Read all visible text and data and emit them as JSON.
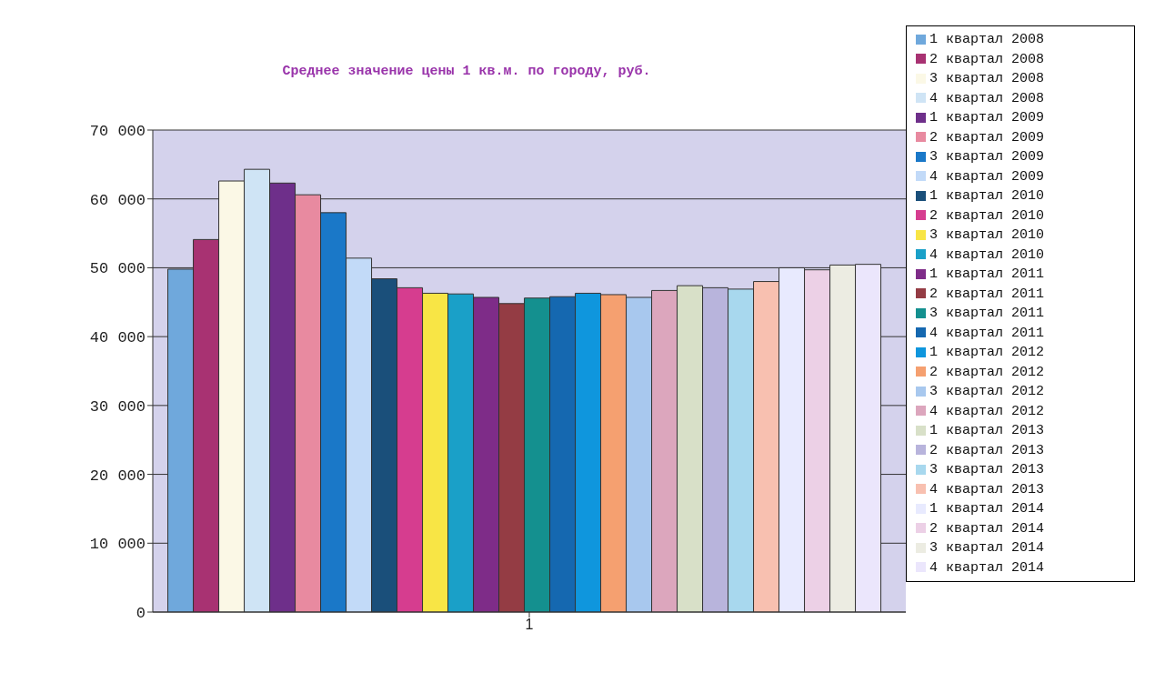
{
  "chart_data": {
    "type": "bar",
    "title": "Среднее значение цены 1 кв.м. по городу, руб.",
    "categories": [
      "1"
    ],
    "series": [
      {
        "name": "1 квартал 2008",
        "color": "#6fa8dc",
        "values": [
          49800
        ]
      },
      {
        "name": "2 квартал 2008",
        "color": "#a83272",
        "values": [
          54100
        ]
      },
      {
        "name": "3 квартал 2008",
        "color": "#fbf8e6",
        "values": [
          62600
        ]
      },
      {
        "name": "4 квартал 2008",
        "color": "#cfe4f5",
        "values": [
          64300
        ]
      },
      {
        "name": "1 квартал 2009",
        "color": "#6e2f8a",
        "values": [
          62300
        ]
      },
      {
        "name": "2 квартал 2009",
        "color": "#e88aa0",
        "values": [
          60600
        ]
      },
      {
        "name": "3 квартал 2009",
        "color": "#1a78c8",
        "values": [
          58000
        ]
      },
      {
        "name": "4 квартал 2009",
        "color": "#c2daf8",
        "values": [
          51400
        ]
      },
      {
        "name": "1 квартал 2010",
        "color": "#1a4f7a",
        "values": [
          48400
        ]
      },
      {
        "name": "2 квартал 2010",
        "color": "#d63d8f",
        "values": [
          47100
        ]
      },
      {
        "name": "3 квартал 2010",
        "color": "#f8e545",
        "values": [
          46300
        ]
      },
      {
        "name": "4 квартал 2010",
        "color": "#1aa0c8",
        "values": [
          46200
        ]
      },
      {
        "name": "1 квартал 2011",
        "color": "#7e2c88",
        "values": [
          45700
        ]
      },
      {
        "name": "2 квартал 2011",
        "color": "#943c44",
        "values": [
          44800
        ]
      },
      {
        "name": "3 квартал 2011",
        "color": "#14908f",
        "values": [
          45600
        ]
      },
      {
        "name": "4 квартал 2011",
        "color": "#1568b0",
        "values": [
          45800
        ]
      },
      {
        "name": "1 квартал 2012",
        "color": "#0f96dd",
        "values": [
          46300
        ]
      },
      {
        "name": "2 квартал 2012",
        "color": "#f5a070",
        "values": [
          46100
        ]
      },
      {
        "name": "3 квартал 2012",
        "color": "#a8c8ee",
        "values": [
          45700
        ]
      },
      {
        "name": "4 квартал 2012",
        "color": "#dca6bd",
        "values": [
          46700
        ]
      },
      {
        "name": "1 квартал 2013",
        "color": "#d8e0c8",
        "values": [
          47400
        ]
      },
      {
        "name": "2 квартал 2013",
        "color": "#b8b4dc",
        "values": [
          47100
        ]
      },
      {
        "name": "3 квартал 2013",
        "color": "#a8d8ee",
        "values": [
          46900
        ]
      },
      {
        "name": "4 квартал 2013",
        "color": "#f8c0b0",
        "values": [
          48000
        ]
      },
      {
        "name": "1 квартал 2014",
        "color": "#e8eafe",
        "values": [
          50000
        ]
      },
      {
        "name": "2 квартал 2014",
        "color": "#ecd0e6",
        "values": [
          49700
        ]
      },
      {
        "name": "3 квартал 2014",
        "color": "#ecece2",
        "values": [
          50400
        ]
      },
      {
        "name": "4 квартал 2014",
        "color": "#ebe6fc",
        "values": [
          50500
        ]
      }
    ],
    "ylim": [
      0,
      70000
    ],
    "yticks": [
      {
        "value": 0,
        "label": "0"
      },
      {
        "value": 10000,
        "label": "10 000"
      },
      {
        "value": 20000,
        "label": "20 000"
      },
      {
        "value": 30000,
        "label": "30 000"
      },
      {
        "value": 40000,
        "label": "40 000"
      },
      {
        "value": 50000,
        "label": "50 000"
      },
      {
        "value": 60000,
        "label": "60 000"
      },
      {
        "value": 70000,
        "label": "70 000"
      }
    ],
    "grid": "y",
    "legend": "right"
  }
}
